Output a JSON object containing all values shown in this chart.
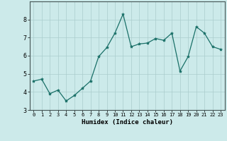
{
  "x": [
    0,
    1,
    2,
    3,
    4,
    5,
    6,
    7,
    8,
    9,
    10,
    11,
    12,
    13,
    14,
    15,
    16,
    17,
    18,
    19,
    20,
    21,
    22,
    23
  ],
  "y": [
    4.6,
    4.7,
    3.9,
    4.1,
    3.5,
    3.8,
    4.2,
    4.6,
    5.95,
    6.45,
    7.25,
    8.3,
    6.5,
    6.65,
    6.7,
    6.95,
    6.85,
    7.25,
    5.15,
    5.95,
    7.6,
    7.25,
    6.5,
    6.35
  ],
  "xlabel": "Humidex (Indice chaleur)",
  "ylim": [
    3,
    9
  ],
  "xlim": [
    -0.5,
    23.5
  ],
  "yticks": [
    3,
    4,
    5,
    6,
    7,
    8
  ],
  "xticks": [
    0,
    1,
    2,
    3,
    4,
    5,
    6,
    7,
    8,
    9,
    10,
    11,
    12,
    13,
    14,
    15,
    16,
    17,
    18,
    19,
    20,
    21,
    22,
    23
  ],
  "line_color": "#1a7068",
  "marker": "*",
  "bg_color": "#cceaea",
  "grid_color": "#aacccc"
}
